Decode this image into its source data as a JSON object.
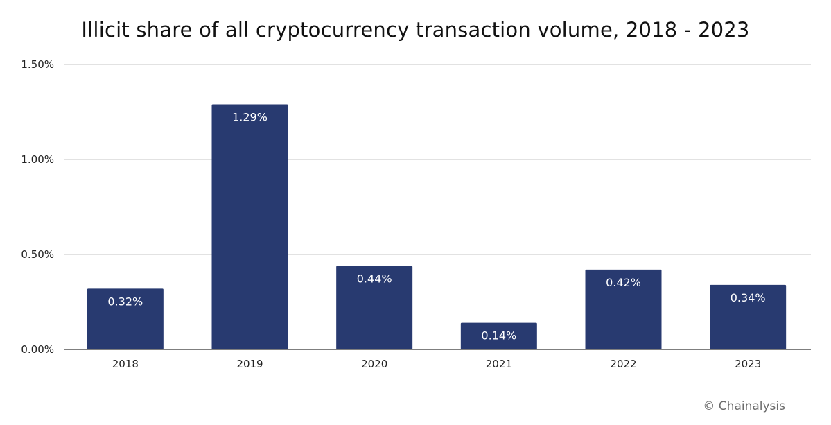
{
  "chart_data": {
    "type": "bar",
    "title": "Illicit share of all cryptocurrency transaction volume, 2018 - 2023",
    "xlabel": "",
    "ylabel": "",
    "categories": [
      "2018",
      "2019",
      "2020",
      "2021",
      "2022",
      "2023"
    ],
    "values": [
      0.32,
      1.29,
      0.44,
      0.14,
      0.42,
      0.34
    ],
    "data_labels": [
      "0.32%",
      "1.29%",
      "0.44%",
      "0.14%",
      "0.42%",
      "0.34%"
    ],
    "ylim": [
      0,
      1.5
    ],
    "yticks": [
      0,
      0.5,
      1.0,
      1.5
    ],
    "ytick_labels": [
      "0.00%",
      "0.50%",
      "1.00%",
      "1.50%"
    ],
    "grid": true,
    "legend": "none",
    "bar_color": "#283A70",
    "grid_color": "#d0d0d0",
    "axis_color": "#333333"
  },
  "footer": {
    "copyright": "© Chainalysis"
  }
}
